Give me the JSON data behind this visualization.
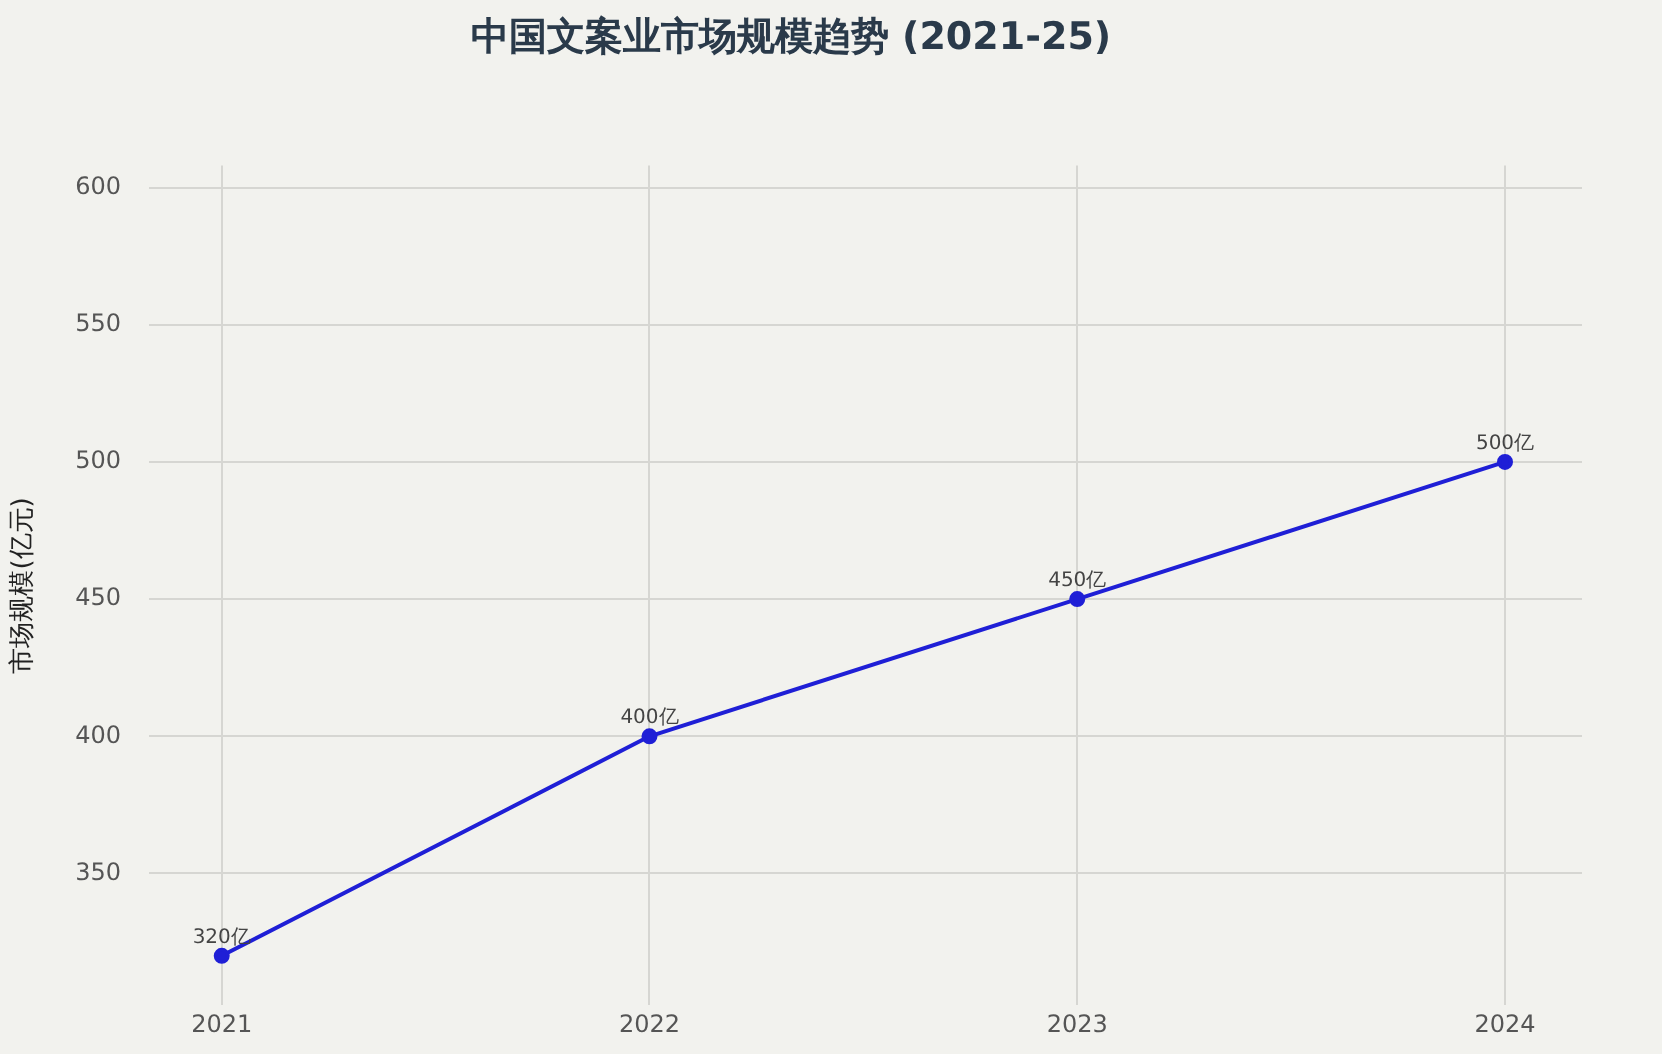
{
  "chart_data": {
    "type": "line",
    "title": "中国文案业市场规模趋势 (2021-25)",
    "ylabel": "市场规模(亿元)",
    "x": [
      2021,
      2022,
      2023,
      2024
    ],
    "xlim": [
      2020.83,
      2024.18
    ],
    "xticks": [
      2021,
      2022,
      2023,
      2024
    ],
    "ylim": [
      302,
      608
    ],
    "yticks": [
      350,
      400,
      450,
      500,
      550,
      600
    ],
    "series": [
      {
        "color": "#1f1fd6",
        "values": [
          320,
          400,
          450,
          500
        ],
        "value_labels": [
          "320亿",
          "400亿",
          "450亿",
          "500亿"
        ]
      }
    ],
    "grid": true,
    "legend": false,
    "marker": "circle",
    "line_style": "solid"
  }
}
